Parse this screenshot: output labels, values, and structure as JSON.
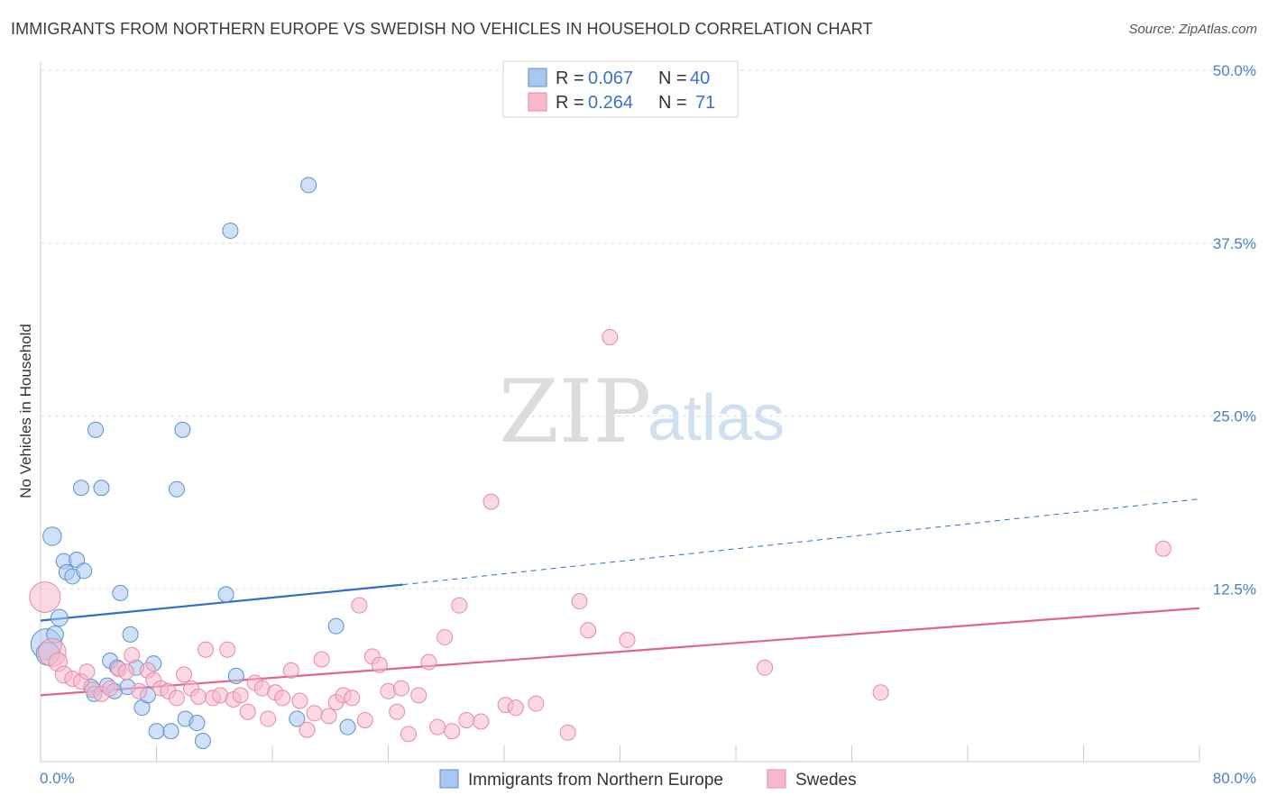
{
  "title": "IMMIGRANTS FROM NORTHERN EUROPE VS SWEDISH NO VEHICLES IN HOUSEHOLD CORRELATION CHART",
  "source": "Source: ZipAtlas.com",
  "watermark": {
    "part1": "ZIP",
    "part2": "atlas"
  },
  "legend": {
    "r_label": "R =",
    "n_label": "N =",
    "rows": [
      {
        "r": "0.067",
        "n": "40",
        "color": "#a8c8f0"
      },
      {
        "r": "0.264",
        "n": "71",
        "color": "#f7b8cc"
      }
    ]
  },
  "colors": {
    "blue_fill": "#a8c8f0",
    "blue_stroke": "#5b8fd6",
    "blue_line": "#2f6ecc",
    "pink_fill": "#f7b8cc",
    "pink_stroke": "#e58aa7",
    "pink_line": "#e2638f",
    "axis_text": "#4a7fc4",
    "grid": "#dddddd"
  },
  "chart_data": {
    "type": "scatter",
    "title": "IMMIGRANTS FROM NORTHERN EUROPE VS SWEDISH NO VEHICLES IN HOUSEHOLD CORRELATION CHART",
    "xlabel": "",
    "ylabel": "No Vehicles in Household",
    "xlim": [
      0,
      80
    ],
    "ylim": [
      0,
      50
    ],
    "x_tick_labels": [
      "0.0%",
      "80.0%"
    ],
    "y_ticks": [
      12.5,
      25.0,
      37.5,
      50.0
    ],
    "y_tick_labels": [
      "12.5%",
      "25.0%",
      "37.5%",
      "50.0%"
    ],
    "grid": true,
    "legend_position": "top-center",
    "series": [
      {
        "name": "Immigrants from Northern Europe",
        "color": "#a8c8f0",
        "r": 0.067,
        "n": 40,
        "trend": {
          "x0": 0,
          "y0": 10.2,
          "x1": 25,
          "y1": 12.8,
          "dashed_to_x": 80,
          "dashed_to_y": 19.0
        },
        "points": [
          {
            "x": 0.4,
            "y": 8.5,
            "s": 2
          },
          {
            "x": 0.5,
            "y": 7.8,
            "s": 1.5
          },
          {
            "x": 0.8,
            "y": 16.3,
            "s": 1.2
          },
          {
            "x": 1.0,
            "y": 9.2,
            "s": 1.1
          },
          {
            "x": 1.3,
            "y": 10.4,
            "s": 1.1
          },
          {
            "x": 1.6,
            "y": 14.5,
            "s": 1
          },
          {
            "x": 1.8,
            "y": 13.7,
            "s": 1
          },
          {
            "x": 2.2,
            "y": 13.4,
            "s": 1
          },
          {
            "x": 2.5,
            "y": 14.6,
            "s": 1
          },
          {
            "x": 2.8,
            "y": 19.8,
            "s": 1
          },
          {
            "x": 3.0,
            "y": 13.8,
            "s": 1
          },
          {
            "x": 3.5,
            "y": 5.4,
            "s": 1
          },
          {
            "x": 3.7,
            "y": 4.9,
            "s": 1
          },
          {
            "x": 3.8,
            "y": 24.0,
            "s": 1
          },
          {
            "x": 4.2,
            "y": 19.8,
            "s": 1
          },
          {
            "x": 4.6,
            "y": 5.5,
            "s": 1
          },
          {
            "x": 4.8,
            "y": 7.3,
            "s": 1
          },
          {
            "x": 5.1,
            "y": 5.1,
            "s": 1
          },
          {
            "x": 5.3,
            "y": 6.8,
            "s": 1
          },
          {
            "x": 5.5,
            "y": 12.2,
            "s": 1
          },
          {
            "x": 6.0,
            "y": 5.4,
            "s": 1
          },
          {
            "x": 6.2,
            "y": 9.2,
            "s": 1
          },
          {
            "x": 6.6,
            "y": 6.8,
            "s": 1
          },
          {
            "x": 7.0,
            "y": 3.9,
            "s": 1
          },
          {
            "x": 7.4,
            "y": 4.8,
            "s": 1
          },
          {
            "x": 7.8,
            "y": 7.1,
            "s": 1
          },
          {
            "x": 8.0,
            "y": 2.2,
            "s": 1
          },
          {
            "x": 9.0,
            "y": 2.2,
            "s": 1
          },
          {
            "x": 9.4,
            "y": 19.7,
            "s": 1
          },
          {
            "x": 9.8,
            "y": 24.0,
            "s": 1
          },
          {
            "x": 10.0,
            "y": 3.1,
            "s": 1
          },
          {
            "x": 10.8,
            "y": 2.8,
            "s": 1
          },
          {
            "x": 11.2,
            "y": 1.5,
            "s": 1
          },
          {
            "x": 12.8,
            "y": 12.1,
            "s": 1
          },
          {
            "x": 13.1,
            "y": 38.4,
            "s": 1
          },
          {
            "x": 13.5,
            "y": 6.2,
            "s": 1
          },
          {
            "x": 17.7,
            "y": 3.1,
            "s": 1
          },
          {
            "x": 18.5,
            "y": 41.7,
            "s": 1
          },
          {
            "x": 20.4,
            "y": 9.8,
            "s": 1
          },
          {
            "x": 21.2,
            "y": 2.5,
            "s": 1
          }
        ]
      },
      {
        "name": "Swedes",
        "color": "#f7b8cc",
        "r": 0.264,
        "n": 71,
        "trend": {
          "x0": 0,
          "y0": 4.8,
          "x1": 80,
          "y1": 11.1
        },
        "points": [
          {
            "x": 0.3,
            "y": 11.9,
            "s": 2
          },
          {
            "x": 0.8,
            "y": 7.9,
            "s": 1.8
          },
          {
            "x": 1.2,
            "y": 7.2,
            "s": 1.2
          },
          {
            "x": 1.6,
            "y": 6.3,
            "s": 1.1
          },
          {
            "x": 2.2,
            "y": 6.0,
            "s": 1
          },
          {
            "x": 2.8,
            "y": 5.8,
            "s": 1
          },
          {
            "x": 3.2,
            "y": 6.5,
            "s": 1
          },
          {
            "x": 3.6,
            "y": 5.2,
            "s": 1
          },
          {
            "x": 4.2,
            "y": 4.9,
            "s": 1
          },
          {
            "x": 4.8,
            "y": 5.3,
            "s": 1
          },
          {
            "x": 5.4,
            "y": 6.7,
            "s": 1
          },
          {
            "x": 5.9,
            "y": 6.5,
            "s": 1
          },
          {
            "x": 6.3,
            "y": 7.7,
            "s": 1
          },
          {
            "x": 6.8,
            "y": 5.1,
            "s": 1
          },
          {
            "x": 7.4,
            "y": 6.6,
            "s": 1
          },
          {
            "x": 7.8,
            "y": 5.9,
            "s": 1
          },
          {
            "x": 8.3,
            "y": 5.3,
            "s": 1
          },
          {
            "x": 8.8,
            "y": 5.1,
            "s": 1
          },
          {
            "x": 9.4,
            "y": 4.6,
            "s": 1
          },
          {
            "x": 9.9,
            "y": 6.3,
            "s": 1
          },
          {
            "x": 10.4,
            "y": 5.3,
            "s": 1
          },
          {
            "x": 10.9,
            "y": 4.7,
            "s": 1
          },
          {
            "x": 11.4,
            "y": 8.1,
            "s": 1
          },
          {
            "x": 11.9,
            "y": 4.6,
            "s": 1
          },
          {
            "x": 12.4,
            "y": 4.8,
            "s": 1
          },
          {
            "x": 12.9,
            "y": 8.1,
            "s": 1
          },
          {
            "x": 13.3,
            "y": 4.5,
            "s": 1
          },
          {
            "x": 13.8,
            "y": 4.8,
            "s": 1
          },
          {
            "x": 14.3,
            "y": 3.6,
            "s": 1
          },
          {
            "x": 14.8,
            "y": 5.7,
            "s": 1
          },
          {
            "x": 15.3,
            "y": 5.3,
            "s": 1
          },
          {
            "x": 15.7,
            "y": 3.1,
            "s": 1
          },
          {
            "x": 16.2,
            "y": 5.0,
            "s": 1
          },
          {
            "x": 16.7,
            "y": 4.6,
            "s": 1
          },
          {
            "x": 17.3,
            "y": 6.6,
            "s": 1
          },
          {
            "x": 17.9,
            "y": 4.4,
            "s": 1
          },
          {
            "x": 18.4,
            "y": 2.3,
            "s": 1
          },
          {
            "x": 18.9,
            "y": 3.5,
            "s": 1
          },
          {
            "x": 19.4,
            "y": 7.4,
            "s": 1
          },
          {
            "x": 19.9,
            "y": 3.3,
            "s": 1
          },
          {
            "x": 20.4,
            "y": 4.3,
            "s": 1
          },
          {
            "x": 20.9,
            "y": 4.8,
            "s": 1
          },
          {
            "x": 21.5,
            "y": 4.6,
            "s": 1
          },
          {
            "x": 22.0,
            "y": 11.3,
            "s": 1
          },
          {
            "x": 22.4,
            "y": 3.0,
            "s": 1
          },
          {
            "x": 22.9,
            "y": 7.6,
            "s": 1
          },
          {
            "x": 23.4,
            "y": 7.0,
            "s": 1
          },
          {
            "x": 24.0,
            "y": 5.1,
            "s": 1
          },
          {
            "x": 24.6,
            "y": 3.6,
            "s": 1
          },
          {
            "x": 24.9,
            "y": 5.3,
            "s": 1
          },
          {
            "x": 25.4,
            "y": 2.0,
            "s": 1
          },
          {
            "x": 26.1,
            "y": 4.8,
            "s": 1
          },
          {
            "x": 26.8,
            "y": 7.2,
            "s": 1
          },
          {
            "x": 27.4,
            "y": 2.5,
            "s": 1
          },
          {
            "x": 27.9,
            "y": 9.0,
            "s": 1
          },
          {
            "x": 28.4,
            "y": 2.2,
            "s": 1
          },
          {
            "x": 28.9,
            "y": 11.3,
            "s": 1
          },
          {
            "x": 29.4,
            "y": 3.0,
            "s": 1
          },
          {
            "x": 30.4,
            "y": 2.9,
            "s": 1
          },
          {
            "x": 31.1,
            "y": 18.8,
            "s": 1
          },
          {
            "x": 32.1,
            "y": 4.1,
            "s": 1
          },
          {
            "x": 32.8,
            "y": 3.9,
            "s": 1
          },
          {
            "x": 34.2,
            "y": 4.2,
            "s": 1
          },
          {
            "x": 36.4,
            "y": 2.1,
            "s": 1
          },
          {
            "x": 37.2,
            "y": 11.6,
            "s": 1
          },
          {
            "x": 37.8,
            "y": 9.5,
            "s": 1
          },
          {
            "x": 39.3,
            "y": 30.7,
            "s": 1
          },
          {
            "x": 40.5,
            "y": 8.8,
            "s": 1
          },
          {
            "x": 50.0,
            "y": 6.8,
            "s": 1
          },
          {
            "x": 58.0,
            "y": 5.0,
            "s": 1
          },
          {
            "x": 77.5,
            "y": 15.4,
            "s": 1
          }
        ]
      }
    ]
  },
  "bottom_legend": {
    "items": [
      {
        "label": "Immigrants from Northern Europe",
        "color": "#a8c8f0"
      },
      {
        "label": "Swedes",
        "color": "#f7b8cc"
      }
    ]
  }
}
